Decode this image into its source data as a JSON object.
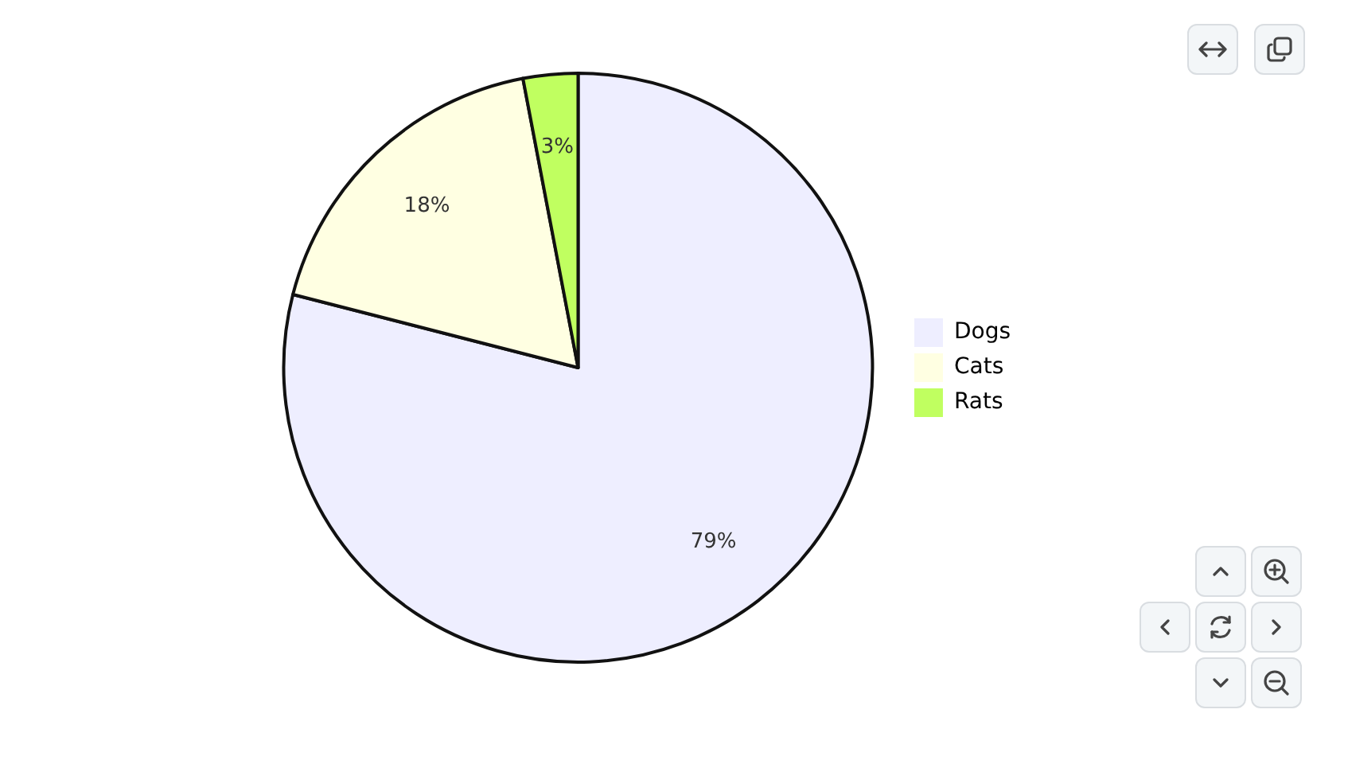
{
  "chart_data": {
    "type": "pie",
    "categories": [
      "Dogs",
      "Cats",
      "Rats"
    ],
    "values": [
      79,
      18,
      3
    ],
    "colors": [
      "#eeeeff",
      "#ffffe2",
      "#c0ff60"
    ],
    "value_labels": [
      "79%",
      "18%",
      "3%"
    ],
    "legend": "right"
  }
}
